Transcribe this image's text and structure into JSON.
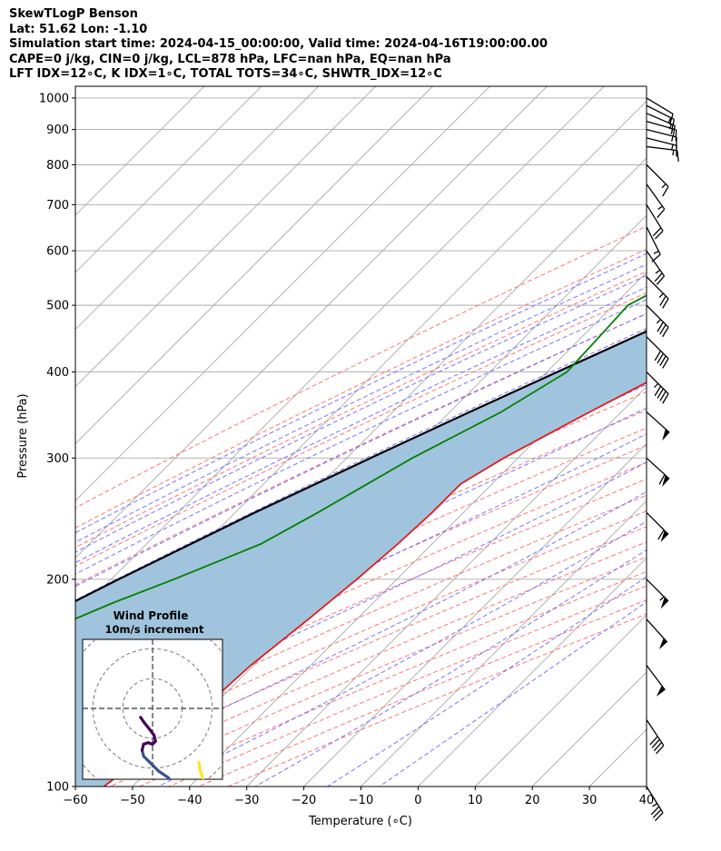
{
  "header": {
    "line1": "SkewTLogP Benson",
    "line2": "Lat: 51.62   Lon: -1.10",
    "line3": "Simulation start time: 2024-04-15_00:00:00, Valid time: 2024-04-16T19:00:00.00",
    "line4": "CAPE=0 j/kg, CIN=0 j/kg, LCL=878 hPa, LFC=nan hPa, EQ=nan hPa",
    "line5": "LFT IDX=12∘C, K IDX=1∘C, TOTAL TOTS=34∘C, SHWTR_IDX=12∘C"
  },
  "chart_data": {
    "type": "line",
    "chart_kind": "skew-t log-p",
    "xlabel": "Temperature (∘C)",
    "ylabel": "Pressure (hPa)",
    "xlim": [
      -60,
      40
    ],
    "ylim": [
      1040,
      100
    ],
    "y_scale": "log",
    "x_ticks": [
      "−60",
      "−50",
      "−40",
      "−30",
      "−20",
      "−10",
      "0",
      "10",
      "20",
      "30",
      "40"
    ],
    "y_ticks": [
      "100",
      "200",
      "300",
      "400",
      "500",
      "600",
      "700",
      "800",
      "900",
      "1000"
    ],
    "grid": true,
    "colors": {
      "temperature": "#e31a1c",
      "dewpoint": "#008000",
      "parcel": "#000000",
      "fill": "#a1c4de",
      "dry_adiabat": "#ff6666",
      "moist_adiabat": "#6666ff",
      "mixing_ratio": "#9933cc",
      "isotherm": "#aaaaaa"
    },
    "temperature": [
      {
        "p": 1000,
        "t": 8.5
      },
      {
        "p": 975,
        "t": 7.0
      },
      {
        "p": 950,
        "t": 5.0
      },
      {
        "p": 900,
        "t": 2.5
      },
      {
        "p": 850,
        "t": 0.5
      },
      {
        "p": 800,
        "t": -1.5
      },
      {
        "p": 750,
        "t": -3.5
      },
      {
        "p": 700,
        "t": -5.5
      },
      {
        "p": 650,
        "t": -8.5
      },
      {
        "p": 600,
        "t": -12.5
      },
      {
        "p": 550,
        "t": -16.5
      },
      {
        "p": 500,
        "t": -20.0
      },
      {
        "p": 450,
        "t": -24.0
      },
      {
        "p": 400,
        "t": -29.0
      },
      {
        "p": 350,
        "t": -35.5
      },
      {
        "p": 300,
        "t": -42.5
      },
      {
        "p": 275,
        "t": -45.5
      },
      {
        "p": 250,
        "t": -45.5
      },
      {
        "p": 225,
        "t": -46.0
      },
      {
        "p": 200,
        "t": -47.0
      },
      {
        "p": 175,
        "t": -48.5
      },
      {
        "p": 150,
        "t": -50.5
      },
      {
        "p": 125,
        "t": -51.5
      },
      {
        "p": 100,
        "t": -55.0
      }
    ],
    "dewpoint": [
      {
        "p": 1000,
        "t": 0.0
      },
      {
        "p": 975,
        "t": -0.5
      },
      {
        "p": 950,
        "t": -2.0
      },
      {
        "p": 900,
        "t": -6.5
      },
      {
        "p": 850,
        "t": -11.0
      },
      {
        "p": 800,
        "t": -13.0
      },
      {
        "p": 750,
        "t": -17.0
      },
      {
        "p": 700,
        "t": -22.0
      },
      {
        "p": 650,
        "t": -29.0
      },
      {
        "p": 600,
        "t": -36.0
      },
      {
        "p": 550,
        "t": -43.0
      },
      {
        "p": 500,
        "t": -47.5
      },
      {
        "p": 450,
        "t": -47.0
      },
      {
        "p": 400,
        "t": -46.5
      },
      {
        "p": 350,
        "t": -51.0
      },
      {
        "p": 300,
        "t": -58.5
      },
      {
        "p": 250,
        "t": -65.5
      },
      {
        "p": 225,
        "t": -70.0
      },
      {
        "p": 200,
        "t": -79.0
      },
      {
        "p": 185,
        "t": -85.5
      },
      {
        "p": 175,
        "t": -89.5
      },
      {
        "p": 150,
        "t": -91.5
      },
      {
        "p": 125,
        "t": -95.0
      },
      {
        "p": 100,
        "t": -100.0
      }
    ],
    "parcel_profile": [
      {
        "p": 1000,
        "t": 8.0
      },
      {
        "p": 950,
        "t": 4.1
      },
      {
        "p": 900,
        "t": 0.0
      },
      {
        "p": 878,
        "t": -1.5
      },
      {
        "p": 850,
        "t": -3.3
      },
      {
        "p": 800,
        "t": -6.6
      },
      {
        "p": 750,
        "t": -10.1
      },
      {
        "p": 700,
        "t": -14.0
      },
      {
        "p": 650,
        "t": -18.3
      },
      {
        "p": 600,
        "t": -23.1
      },
      {
        "p": 550,
        "t": -28.4
      },
      {
        "p": 500,
        "t": -34.2
      },
      {
        "p": 450,
        "t": -40.8
      },
      {
        "p": 400,
        "t": -48.2
      },
      {
        "p": 350,
        "t": -56.5
      },
      {
        "p": 300,
        "t": -65.8
      },
      {
        "p": 250,
        "t": -76.5
      },
      {
        "p": 200,
        "t": -88.7
      },
      {
        "p": 150,
        "t": -103.5
      },
      {
        "p": 100,
        "t": -122.5
      }
    ],
    "wind_barbs": [
      {
        "p": 1000,
        "u": -5,
        "v": 3
      },
      {
        "p": 975,
        "u": -6,
        "v": 3
      },
      {
        "p": 950,
        "u": -7,
        "v": 3
      },
      {
        "p": 925,
        "u": -7,
        "v": 2
      },
      {
        "p": 900,
        "u": -8,
        "v": 2
      },
      {
        "p": 875,
        "u": -8,
        "v": 2
      },
      {
        "p": 850,
        "u": -8,
        "v": 1
      },
      {
        "p": 800,
        "u": -6,
        "v": 6
      },
      {
        "p": 750,
        "u": -5,
        "v": 7
      },
      {
        "p": 700,
        "u": -5,
        "v": 8
      },
      {
        "p": 650,
        "u": -4,
        "v": 8
      },
      {
        "p": 600,
        "u": -7,
        "v": 10
      },
      {
        "p": 550,
        "u": -10,
        "v": 10
      },
      {
        "p": 500,
        "u": -12,
        "v": 12
      },
      {
        "p": 450,
        "u": -14,
        "v": 14
      },
      {
        "p": 400,
        "u": -16,
        "v": 16
      },
      {
        "p": 350,
        "u": -20,
        "v": 18
      },
      {
        "p": 300,
        "u": -22,
        "v": 20
      },
      {
        "p": 250,
        "u": -22,
        "v": 22
      },
      {
        "p": 200,
        "u": -20,
        "v": 20
      },
      {
        "p": 175,
        "u": -18,
        "v": 20
      },
      {
        "p": 150,
        "u": -15,
        "v": 20
      },
      {
        "p": 125,
        "u": -12,
        "v": 18
      },
      {
        "p": 100,
        "u": -10,
        "v": 16
      }
    ]
  },
  "hodograph": {
    "title": "Wind Profile",
    "subtitle": "10m/s increment",
    "rings": [
      10,
      20,
      30
    ],
    "range": [
      -30,
      30
    ],
    "colormap": [
      "#440154",
      "#3b528b",
      "#21918c",
      "#5ec962",
      "#fde725"
    ],
    "points": [
      {
        "u": 12,
        "v": -30
      },
      {
        "u": 9,
        "v": -27
      },
      {
        "u": 5,
        "v": -23
      },
      {
        "u": 2,
        "v": -21
      },
      {
        "u": 0,
        "v": -19
      },
      {
        "u": -1,
        "v": -18
      },
      {
        "u": -2,
        "v": -17
      },
      {
        "u": -3,
        "v": -16
      },
      {
        "u": -3.5,
        "v": -14
      },
      {
        "u": -3,
        "v": -12
      },
      {
        "u": -1.5,
        "v": -11.5
      },
      {
        "u": 0,
        "v": -12
      },
      {
        "u": 1,
        "v": -11
      },
      {
        "u": 0.5,
        "v": -9
      },
      {
        "u": -1,
        "v": -7
      },
      {
        "u": -3,
        "v": -4.5
      },
      {
        "u": -4,
        "v": -3
      }
    ],
    "points_tail": [
      {
        "u": 21,
        "v": -30
      },
      {
        "u": 19,
        "v": -27
      },
      {
        "u": 17,
        "v": -24
      },
      {
        "u": 16,
        "v": -21
      },
      {
        "u": 15.5,
        "v": -18
      }
    ]
  }
}
